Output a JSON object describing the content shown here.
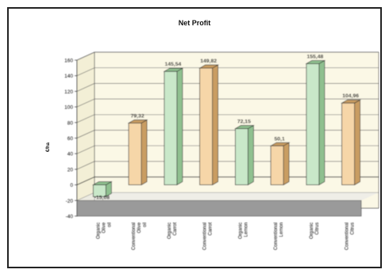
{
  "chart_data": {
    "type": "bar",
    "title": "Net Profit",
    "xlabel": "",
    "ylabel": "€/ha",
    "ylim": [
      -40,
      160
    ],
    "yticks": [
      -40,
      -20,
      0,
      20,
      40,
      60,
      80,
      100,
      120,
      140,
      160
    ],
    "grid": true,
    "legend": "none",
    "categories": [
      "Organic Olive oil",
      "Conventional Olive oil",
      "Organic Carrot",
      "Conventional Carrot",
      "Organic Lemon",
      "Conventional Lemon",
      "Organic Citrus",
      "Conventional Citrus"
    ],
    "values": [
      -15.08,
      79.32,
      145.54,
      149.82,
      72.15,
      50.1,
      155.48,
      104.96
    ],
    "data_labels": [
      "-15,08",
      "79,32",
      "145,54",
      "149,82",
      "72,15",
      "50,1",
      "155,48",
      "104,96"
    ],
    "colors": {
      "organic": "#c9e8c9",
      "organic_side": "#8fc08f",
      "conventional": "#f6d6a8",
      "conventional_side": "#c99d62",
      "wall": "#fbf8e6",
      "floor": "#9a9a9a"
    }
  }
}
